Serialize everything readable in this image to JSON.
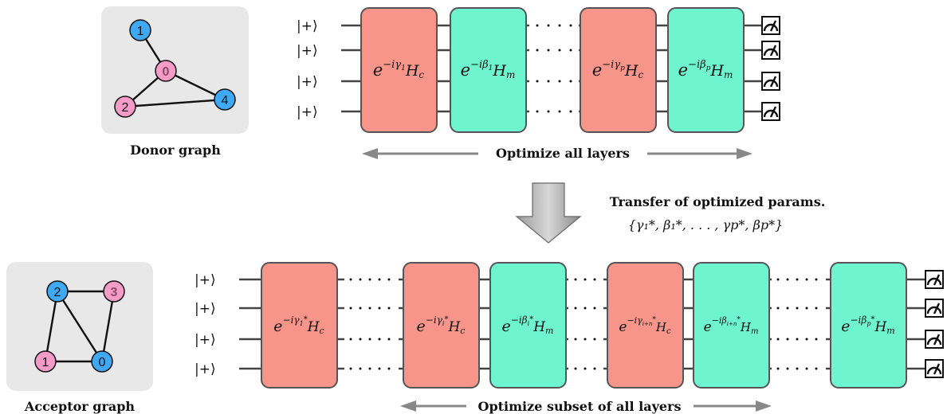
{
  "donor": {
    "label": "Donor graph",
    "nodes": [
      {
        "id": "1",
        "color": "#3fa9f5"
      },
      {
        "id": "0",
        "color": "#f59bc8"
      },
      {
        "id": "2",
        "color": "#f59bc8"
      },
      {
        "id": "4",
        "color": "#3fa9f5"
      }
    ],
    "edges": [
      [
        "1",
        "0"
      ],
      [
        "0",
        "2"
      ],
      [
        "0",
        "4"
      ],
      [
        "2",
        "4"
      ]
    ]
  },
  "acceptor": {
    "label": "Acceptor graph",
    "nodes": [
      {
        "id": "2",
        "color": "#3fa9f5"
      },
      {
        "id": "3",
        "color": "#f59bc8"
      },
      {
        "id": "1",
        "color": "#f59bc8"
      },
      {
        "id": "0",
        "color": "#3fa9f5"
      }
    ],
    "edges": [
      [
        "2",
        "3"
      ],
      [
        "2",
        "1"
      ],
      [
        "2",
        "0"
      ],
      [
        "3",
        "0"
      ],
      [
        "1",
        "0"
      ]
    ]
  },
  "top_circuit": {
    "input_state": "|+⟩",
    "optimize_label": "Optimize all layers"
  },
  "transfer": {
    "label": "Transfer of optimized params.",
    "params": "{γ₁*, β₁*, . . . , γp*, βp*}"
  },
  "bottom_circuit": {
    "input_state": "|+⟩",
    "optimize_label": "Optimize subset of all layers"
  },
  "colors": {
    "cost_gate": "#f8958a",
    "mixer_gate": "#6ef5d0",
    "graph_bg": "#e8e8e8"
  }
}
